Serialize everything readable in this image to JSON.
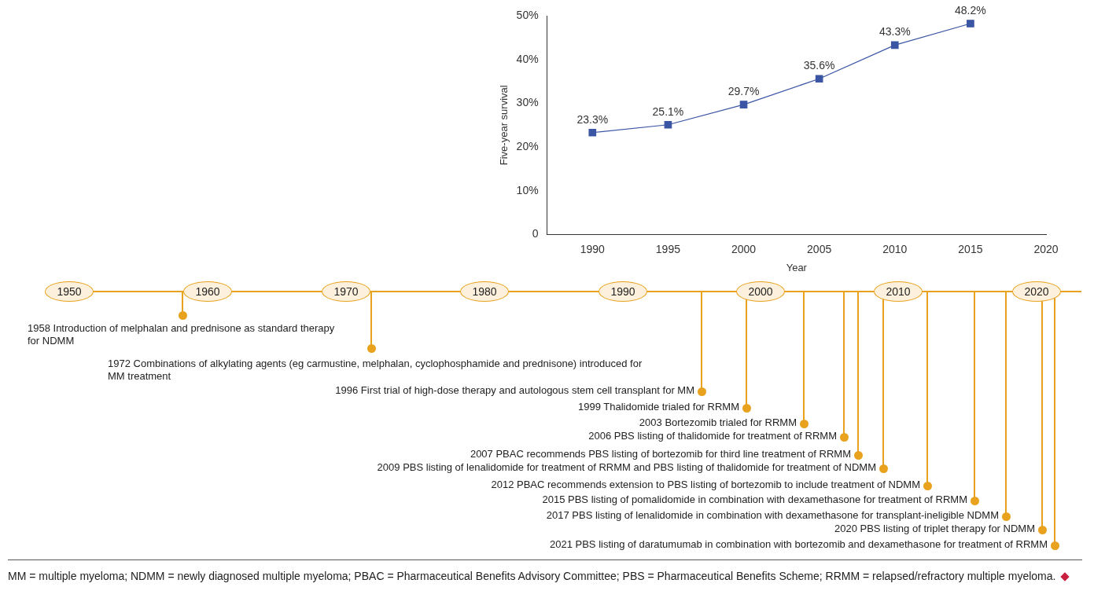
{
  "chart_data": {
    "type": "line",
    "ylabel": "Five-year survival",
    "xlabel": "Year",
    "x": [
      1990,
      1995,
      2000,
      2005,
      2010,
      2015
    ],
    "series": [
      {
        "color": "#3a55a4",
        "values": [
          23.3,
          25.1,
          29.7,
          35.6,
          43.3,
          48.2
        ],
        "value_labels": [
          "23.3%",
          "25.1%",
          "29.7%",
          "35.6%",
          "43.3%",
          "48.2%"
        ]
      }
    ],
    "xlim": [
      1987,
      2020
    ],
    "xticks": [
      1990,
      1995,
      2000,
      2005,
      2010,
      2015,
      2020
    ],
    "ylim": [
      0,
      50
    ],
    "yticks": [
      0,
      {
        "value": 10,
        "label": "10%"
      },
      {
        "value": 20,
        "label": "20%"
      },
      {
        "value": 30,
        "label": "30%"
      },
      {
        "value": 40,
        "label": "40%"
      },
      {
        "value": 50,
        "label": "50%"
      }
    ],
    "grid": false,
    "legend": false,
    "marker": "square",
    "line_style": "solid",
    "annotations": [
      "1950",
      "1960",
      "1970",
      "1980",
      "1990",
      "2000",
      "2010",
      "2020",
      "1958 Introduction of melphalan and prednisone as standard therapy for NDMM",
      "1972 Combinations of alkylating agents (eg carmustine, melphalan, cyclophosphamide and prednisone) introduced for MM treatment",
      "1996 First trial of high-dose therapy and autologous stem cell transplant for MM",
      "1999 Thalidomide trialed for RRMM",
      "2003 Bortezomib trialed for RRMM",
      "2006 PBS listing of thalidomide for treatment of RRMM",
      "2007 PBAC recommends PBS listing of bortezomib for third line treatment of RRMM",
      "2009 PBS listing of lenalidomide for treatment of RRMM and PBS listing of thalidomide for treatment of NDMM",
      "2012 PBAC recommends extension to PBS listing of bortezomib to include treatment of NDMM",
      "2015 PBS listing of pomalidomide in combination with dexamethasone for treatment of RRMM",
      "2017 PBS listing of lenalidomide in combination with dexamethasone for transplant-ineligible NDMM",
      "2020 PBS listing of triplet therapy for NDMM",
      "2021 PBS listing of daratumumab in combination with bortezomib and dexamethasone for treatment of RRMM",
      "MM = multiple myeloma; NDMM = newly diagnosed multiple myeloma; PBAC = Pharmaceutical Benefits Advisory Committee; PBS = Pharmaceutical Benefits Scheme; RRMM = relapsed/refractory multiple myeloma."
    ]
  }
}
